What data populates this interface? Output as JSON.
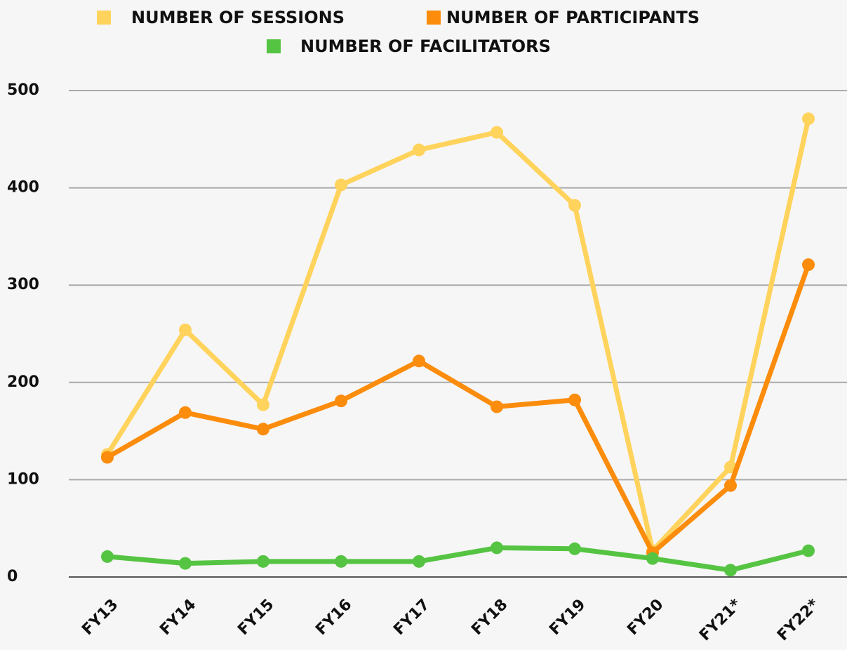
{
  "chart_data": {
    "type": "line",
    "categories": [
      "FY13",
      "FY14",
      "FY15",
      "FY16",
      "FY17",
      "FY18",
      "FY19",
      "FY20",
      "FY21*",
      "FY22*"
    ],
    "series": [
      {
        "name": "NUMBER OF SESSIONS",
        "color": "#ffd35c",
        "values": [
          126,
          254,
          177,
          403,
          439,
          457,
          382,
          27,
          113,
          471
        ]
      },
      {
        "name": "NUMBER OF PARTICIPANTS",
        "color": "#fb8c0c",
        "values": [
          123,
          169,
          152,
          181,
          222,
          175,
          182,
          25,
          94,
          321
        ]
      },
      {
        "name": "NUMBER OF FACILITATORS",
        "color": "#56c443",
        "values": [
          21,
          14,
          16,
          16,
          16,
          30,
          29,
          19,
          7,
          27
        ]
      }
    ],
    "ylim": [
      0,
      500
    ],
    "yticks": [
      0,
      100,
      200,
      300,
      400,
      500
    ],
    "grid": true,
    "legend": "top"
  }
}
